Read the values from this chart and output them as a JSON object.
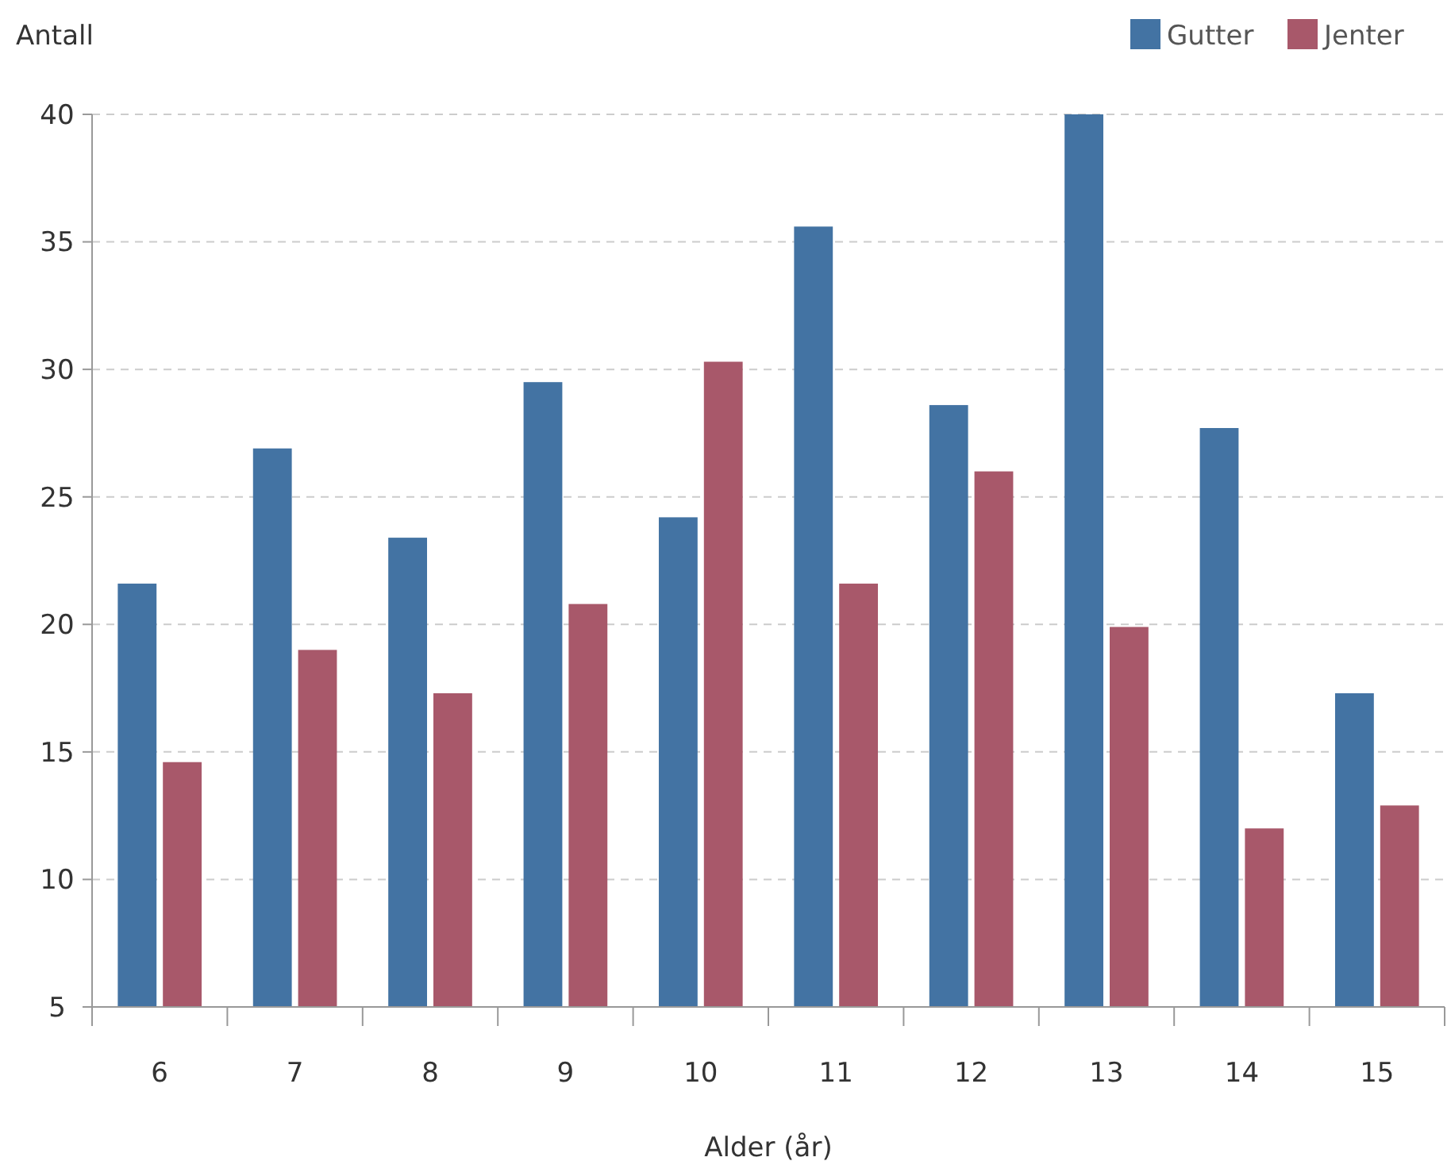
{
  "chart_data": {
    "type": "bar",
    "xlabel": "Alder (år)",
    "ylabel": "Antall",
    "categories": [
      "6",
      "7",
      "8",
      "9",
      "10",
      "11",
      "12",
      "13",
      "14",
      "15"
    ],
    "series": [
      {
        "name": "Gutter",
        "color": "#4373a3",
        "values": [
          21.6,
          26.9,
          23.4,
          29.5,
          24.2,
          35.6,
          28.6,
          40,
          27.7,
          17.3
        ]
      },
      {
        "name": "Jenter",
        "color": "#a8586a",
        "values": [
          14.6,
          19.0,
          17.3,
          20.8,
          30.3,
          21.6,
          26.0,
          19.9,
          12.0,
          12.9
        ]
      }
    ],
    "ylim": [
      5,
      40
    ],
    "yticks": [
      5,
      10,
      15,
      20,
      25,
      30,
      35,
      40
    ],
    "grid": "y",
    "legend": "top right"
  }
}
